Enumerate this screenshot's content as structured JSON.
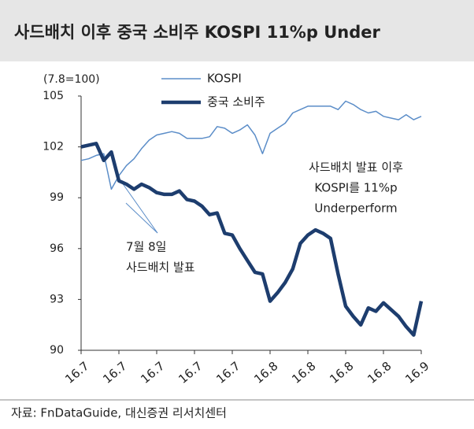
{
  "chart_data": {
    "type": "line",
    "title": "사드배치 이후 중국 소비주 KOSPI 11%p Under",
    "y_label": "(7.8=100)",
    "source": "자료: FnDataGuide, 대신증권 리서치센터",
    "annotations": [
      {
        "lines": [
          "사드배치 발표 이후",
          "KOSPI를 11%p",
          "Underperform"
        ]
      },
      {
        "lines": [
          "7월 8일",
          "사드배치 발표"
        ]
      }
    ],
    "categories": [
      "16.7",
      null,
      null,
      null,
      null,
      "16.7",
      null,
      null,
      null,
      null,
      "16.7",
      null,
      null,
      null,
      null,
      "16.7",
      null,
      null,
      null,
      null,
      "16.7",
      null,
      null,
      null,
      null,
      "16.8",
      null,
      null,
      null,
      null,
      "16.8",
      null,
      null,
      null,
      null,
      "16.8",
      null,
      null,
      null,
      null,
      "16.8",
      null,
      null,
      null,
      null,
      "16.9"
    ],
    "series": [
      {
        "name": "KOSPI",
        "color": "#5b8dc8",
        "width": 1.5,
        "values": [
          101.2,
          101.3,
          101.5,
          101.6,
          99.5,
          100.3,
          100.9,
          101.3,
          101.9,
          102.4,
          102.7,
          102.8,
          102.9,
          102.8,
          102.5,
          102.5,
          102.5,
          102.6,
          103.2,
          103.1,
          102.8,
          103.0,
          103.3,
          102.7,
          101.6,
          102.8,
          103.1,
          103.4,
          104.0,
          104.2,
          104.4,
          104.4,
          104.4,
          104.4,
          104.2,
          104.7,
          104.5,
          104.2,
          104.0,
          104.1,
          103.8,
          103.7,
          103.6,
          103.9,
          103.6,
          103.8
        ]
      },
      {
        "name": "중국 소비주",
        "color": "#1d3d6e",
        "width": 4.5,
        "values": [
          102.0,
          102.1,
          102.2,
          101.2,
          101.7,
          100.0,
          99.8,
          99.5,
          99.8,
          99.6,
          99.3,
          99.2,
          99.2,
          99.4,
          98.9,
          98.8,
          98.5,
          98.0,
          98.1,
          96.9,
          96.8,
          96.0,
          95.3,
          94.6,
          94.5,
          92.9,
          93.4,
          94.0,
          94.8,
          96.3,
          96.8,
          97.1,
          96.9,
          96.6,
          94.5,
          92.6,
          92.0,
          91.5,
          92.5,
          92.3,
          92.8,
          92.4,
          92.0,
          91.4,
          90.9,
          92.9
        ]
      }
    ],
    "ylim": [
      90,
      105
    ],
    "yticks": [
      90,
      93,
      96,
      99,
      102,
      105
    ]
  }
}
